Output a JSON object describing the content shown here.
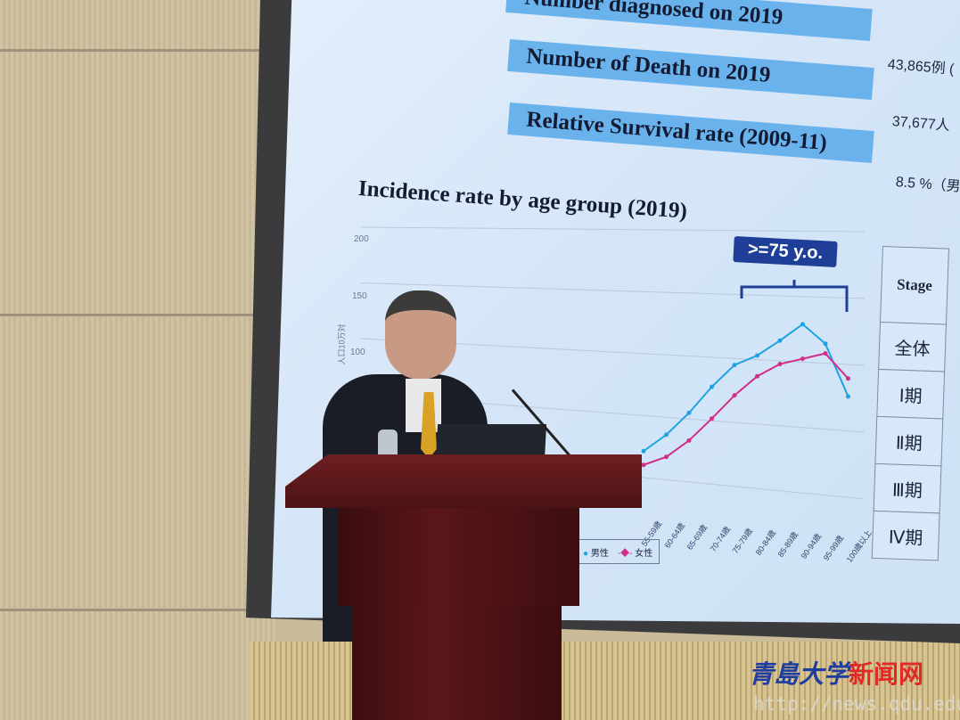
{
  "slide": {
    "summary_rows": [
      {
        "label": "Number diagnosed on 2019",
        "value": "43,865例 ("
      },
      {
        "label": "Number of Death on 2019",
        "value": "37,677人"
      },
      {
        "label": "Relative Survival rate (2009-11)",
        "value": "8.5 %（男"
      }
    ],
    "chart_title": "Incidence rate by age group (2019)",
    "highlight_label": ">=75 y.o.",
    "stage_table": [
      "Stage",
      "全体",
      "Ⅰ期",
      "Ⅱ期",
      "Ⅲ期",
      "Ⅳ期"
    ]
  },
  "chart_data": {
    "type": "line",
    "title": "Incidence rate by age group (2019)",
    "ylabel": "人口10万対",
    "yticks": [
      "200",
      "150",
      "100"
    ],
    "ylim": [
      0,
      200
    ],
    "categories": [
      "55-59歳",
      "60-64歳",
      "65-69歳",
      "70-74歳",
      "75-79歳",
      "80-84歳",
      "85-89歳",
      "90-94歳",
      "95-99歳",
      "100歳以上"
    ],
    "series": [
      {
        "name": "男性",
        "color": "#1fa3e0",
        "values": [
          25,
          38,
          55,
          75,
          92,
          100,
          112,
          125,
          112,
          75
        ]
      },
      {
        "name": "女性",
        "color": "#d0308a",
        "values": [
          15,
          22,
          35,
          52,
          70,
          85,
          95,
          100,
          105,
          88
        ]
      }
    ],
    "grid": true,
    "legend": "bottom"
  },
  "watermark": {
    "logo": "青島大学",
    "logo_red": "新闻网",
    "url": "http://news.qdu.edu.cn"
  }
}
